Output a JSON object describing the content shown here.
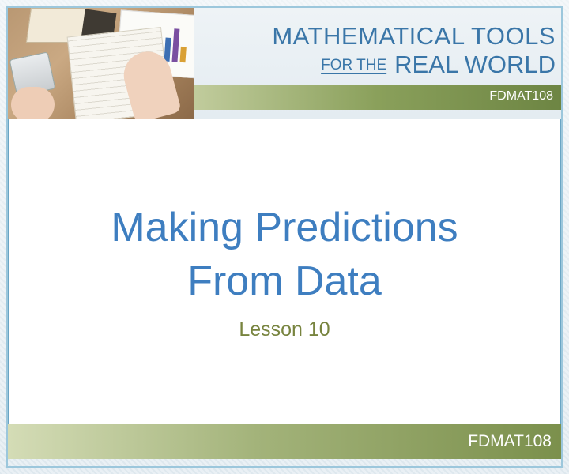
{
  "header": {
    "title_line1": "MATHEMATICAL TOOLS",
    "title_line2_small": "FOR THE",
    "title_line2_big": "REAL WORLD",
    "course_code": "FDMAT108"
  },
  "slide": {
    "title_line1": "Making Predictions",
    "title_line2": "From Data",
    "subtitle": "Lesson 10"
  },
  "footer": {
    "course_code": "FDMAT108"
  },
  "colors": {
    "title_blue": "#3e7ec0",
    "header_blue": "#3a76a8",
    "subtitle_olive": "#78843f",
    "strip_green": "#7b904c"
  }
}
